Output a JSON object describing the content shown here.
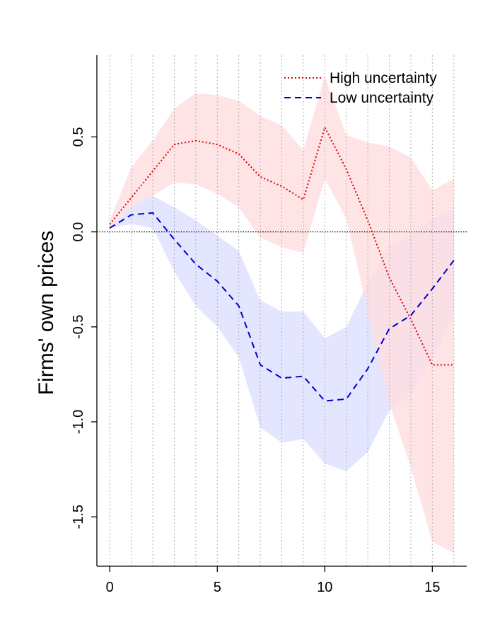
{
  "chart_data": {
    "type": "line",
    "title": "",
    "xlabel": "",
    "ylabel": "Firms' own prices",
    "xlim": [
      -0.6,
      16.6
    ],
    "ylim": [
      -1.76,
      0.93
    ],
    "x_ticks": [
      0,
      5,
      10,
      15
    ],
    "y_ticks": [
      -1.5,
      -1.0,
      -0.5,
      0.0,
      0.5
    ],
    "x_tick_labels": [
      "0",
      "5",
      "10",
      "15"
    ],
    "y_tick_labels": [
      "-1.5",
      "-1.0",
      "-0.5",
      "0.0",
      "0.5"
    ],
    "vertical_gridlines": [
      0,
      1,
      2,
      3,
      4,
      5,
      6,
      7,
      8,
      9,
      10,
      11,
      12,
      13,
      14,
      15,
      16
    ],
    "zero_line": 0,
    "x": [
      0,
      1,
      2,
      3,
      4,
      5,
      6,
      7,
      8,
      9,
      10,
      11,
      12,
      13,
      14,
      15,
      16
    ],
    "series": [
      {
        "name": "High uncertainty",
        "line_style": "dotted",
        "color": "#dd0000",
        "band_color": "#ffdde0",
        "values": [
          0.04,
          0.18,
          0.32,
          0.46,
          0.48,
          0.46,
          0.41,
          0.29,
          0.24,
          0.17,
          0.55,
          0.33,
          0.06,
          -0.24,
          -0.46,
          -0.7,
          -0.7
        ],
        "upper": [
          0.06,
          0.34,
          0.48,
          0.65,
          0.73,
          0.72,
          0.69,
          0.61,
          0.56,
          0.43,
          0.82,
          0.51,
          0.47,
          0.45,
          0.39,
          0.22,
          0.28
        ],
        "lower": [
          0.02,
          0.13,
          0.19,
          0.26,
          0.25,
          0.2,
          0.13,
          -0.03,
          -0.08,
          -0.11,
          0.28,
          0.07,
          -0.42,
          -0.9,
          -1.24,
          -1.63,
          -1.69
        ]
      },
      {
        "name": "Low uncertainty",
        "line_style": "dashed",
        "color": "#0000cc",
        "band_color": "#dde0ff",
        "values": [
          0.02,
          0.09,
          0.1,
          -0.04,
          -0.17,
          -0.26,
          -0.39,
          -0.7,
          -0.77,
          -0.76,
          -0.89,
          -0.88,
          -0.72,
          -0.51,
          -0.44,
          -0.3,
          -0.15
        ],
        "upper": [
          0.03,
          0.13,
          0.19,
          0.13,
          0.06,
          -0.02,
          -0.1,
          -0.36,
          -0.42,
          -0.42,
          -0.56,
          -0.5,
          -0.27,
          -0.07,
          -0.02,
          0.07,
          0.12
        ],
        "lower": [
          0.02,
          0.04,
          0.02,
          -0.21,
          -0.39,
          -0.5,
          -0.66,
          -1.03,
          -1.11,
          -1.09,
          -1.22,
          -1.26,
          -1.16,
          -0.94,
          -0.86,
          -0.67,
          -0.44
        ]
      }
    ],
    "legend": {
      "position": "top-right",
      "entries": [
        "High uncertainty",
        "Low uncertainty"
      ]
    }
  }
}
